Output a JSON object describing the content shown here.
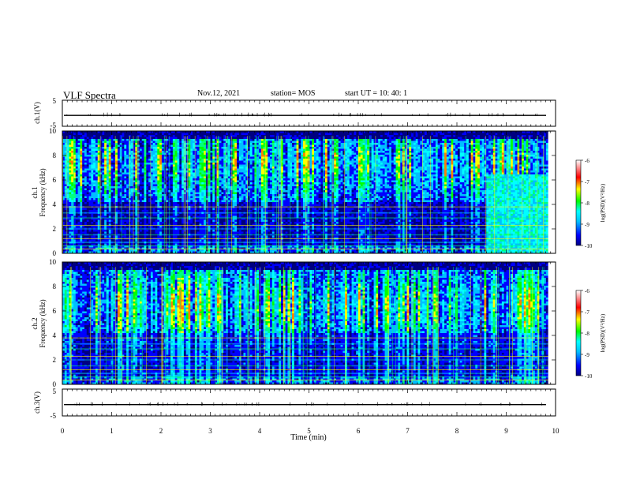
{
  "header": {
    "title": "VLF Spectra",
    "date": "Nov.12, 2021",
    "station": "station= MOS",
    "start": "start  UT  =   10: 40: 1"
  },
  "chart_data": [
    {
      "type": "line",
      "name": "ch1-waveform",
      "ylabel": "ch.1(V)",
      "ylim": [
        -5,
        5
      ],
      "yticks": [
        "5",
        "-5"
      ],
      "xlim": [
        0,
        10
      ],
      "level": -0.8
    },
    {
      "type": "heatmap",
      "name": "ch1-spectrogram",
      "ylabel": "ch.1\nFrequency (kHz)",
      "ylim": [
        0,
        10
      ],
      "yticks": [
        "0",
        "2",
        "4",
        "6",
        "8",
        "10"
      ],
      "xlim": [
        0,
        10
      ],
      "data_end_min": 9.85,
      "colorbar": {
        "label": "log(PSD)(V²/Hz)",
        "range": [
          -10,
          -6
        ],
        "ticks": [
          "-6",
          "-7",
          "-8",
          "-9",
          "-10"
        ]
      }
    },
    {
      "type": "heatmap",
      "name": "ch2-spectrogram",
      "ylabel": "ch.2\nFrequency (kHz)",
      "ylim": [
        0,
        10
      ],
      "yticks": [
        "0",
        "2",
        "4",
        "6",
        "8",
        "10"
      ],
      "xlim": [
        0,
        10
      ],
      "data_end_min": 9.85,
      "colorbar": {
        "label": "log(PSD)(V²/Hz)",
        "range": [
          -10,
          -6
        ],
        "ticks": [
          "-6",
          "-7",
          "-8",
          "-9",
          "-10"
        ]
      }
    },
    {
      "type": "line",
      "name": "ch3-waveform",
      "ylabel": "ch.3(V)",
      "ylim": [
        -5,
        5
      ],
      "yticks": [
        "5",
        "-5"
      ],
      "xlim": [
        0,
        10
      ],
      "level": -0.8,
      "xlabel": "Time  (min)",
      "xticks": [
        "0",
        "1",
        "2",
        "3",
        "4",
        "5",
        "6",
        "7",
        "8",
        "9",
        "10"
      ]
    }
  ],
  "colors": {
    "colormap": [
      "#000080",
      "#0000ff",
      "#00bfff",
      "#00ffff",
      "#00ff7f",
      "#00ff00",
      "#ffff00",
      "#ff7f00",
      "#ff0000",
      "#ffffff"
    ],
    "background": "#ffffff",
    "axis": "#000000"
  }
}
